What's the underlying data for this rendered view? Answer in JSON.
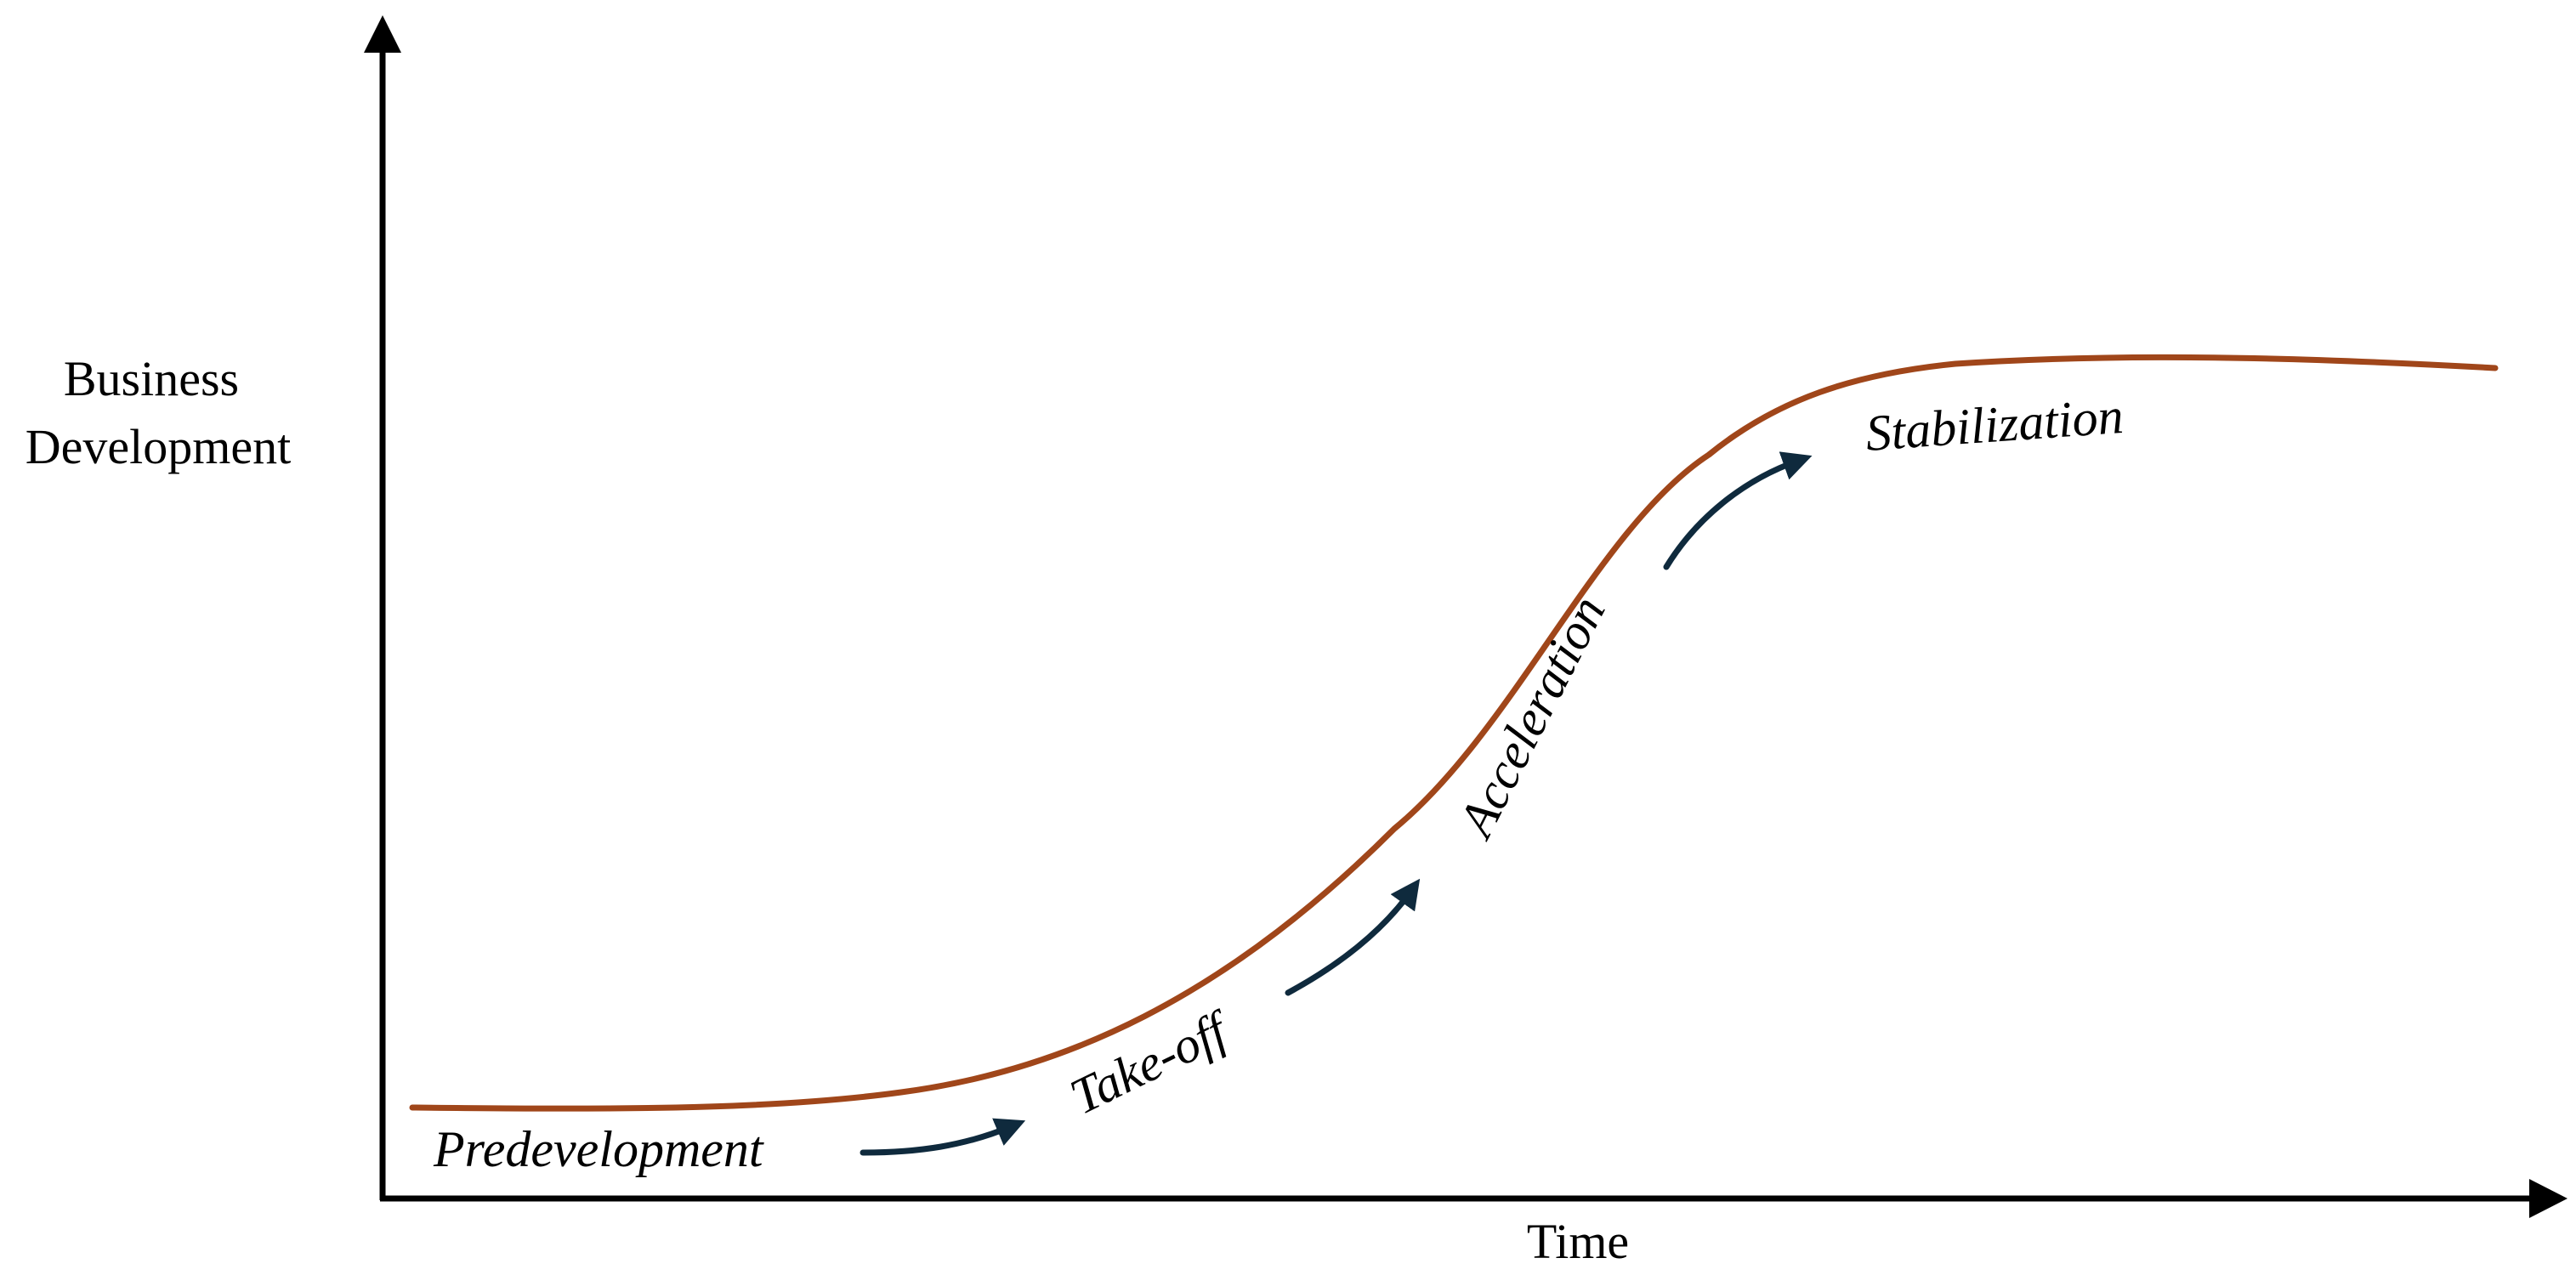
{
  "y_axis": {
    "label_line1": "Business",
    "label_line2": "Development"
  },
  "x_axis": {
    "label": "Time"
  },
  "stages": [
    {
      "label": "Predevelopment"
    },
    {
      "label": "Take-off"
    },
    {
      "label": "Acceleration"
    },
    {
      "label": "Stabilization"
    }
  ],
  "colors": {
    "curve": "#A0461A",
    "arrows": "#0F2A3D",
    "axes": "#000000"
  },
  "icons": {
    "stage_arrow": "curved-arrow-icon",
    "axis_head": "triangle-arrowhead-icon"
  }
}
